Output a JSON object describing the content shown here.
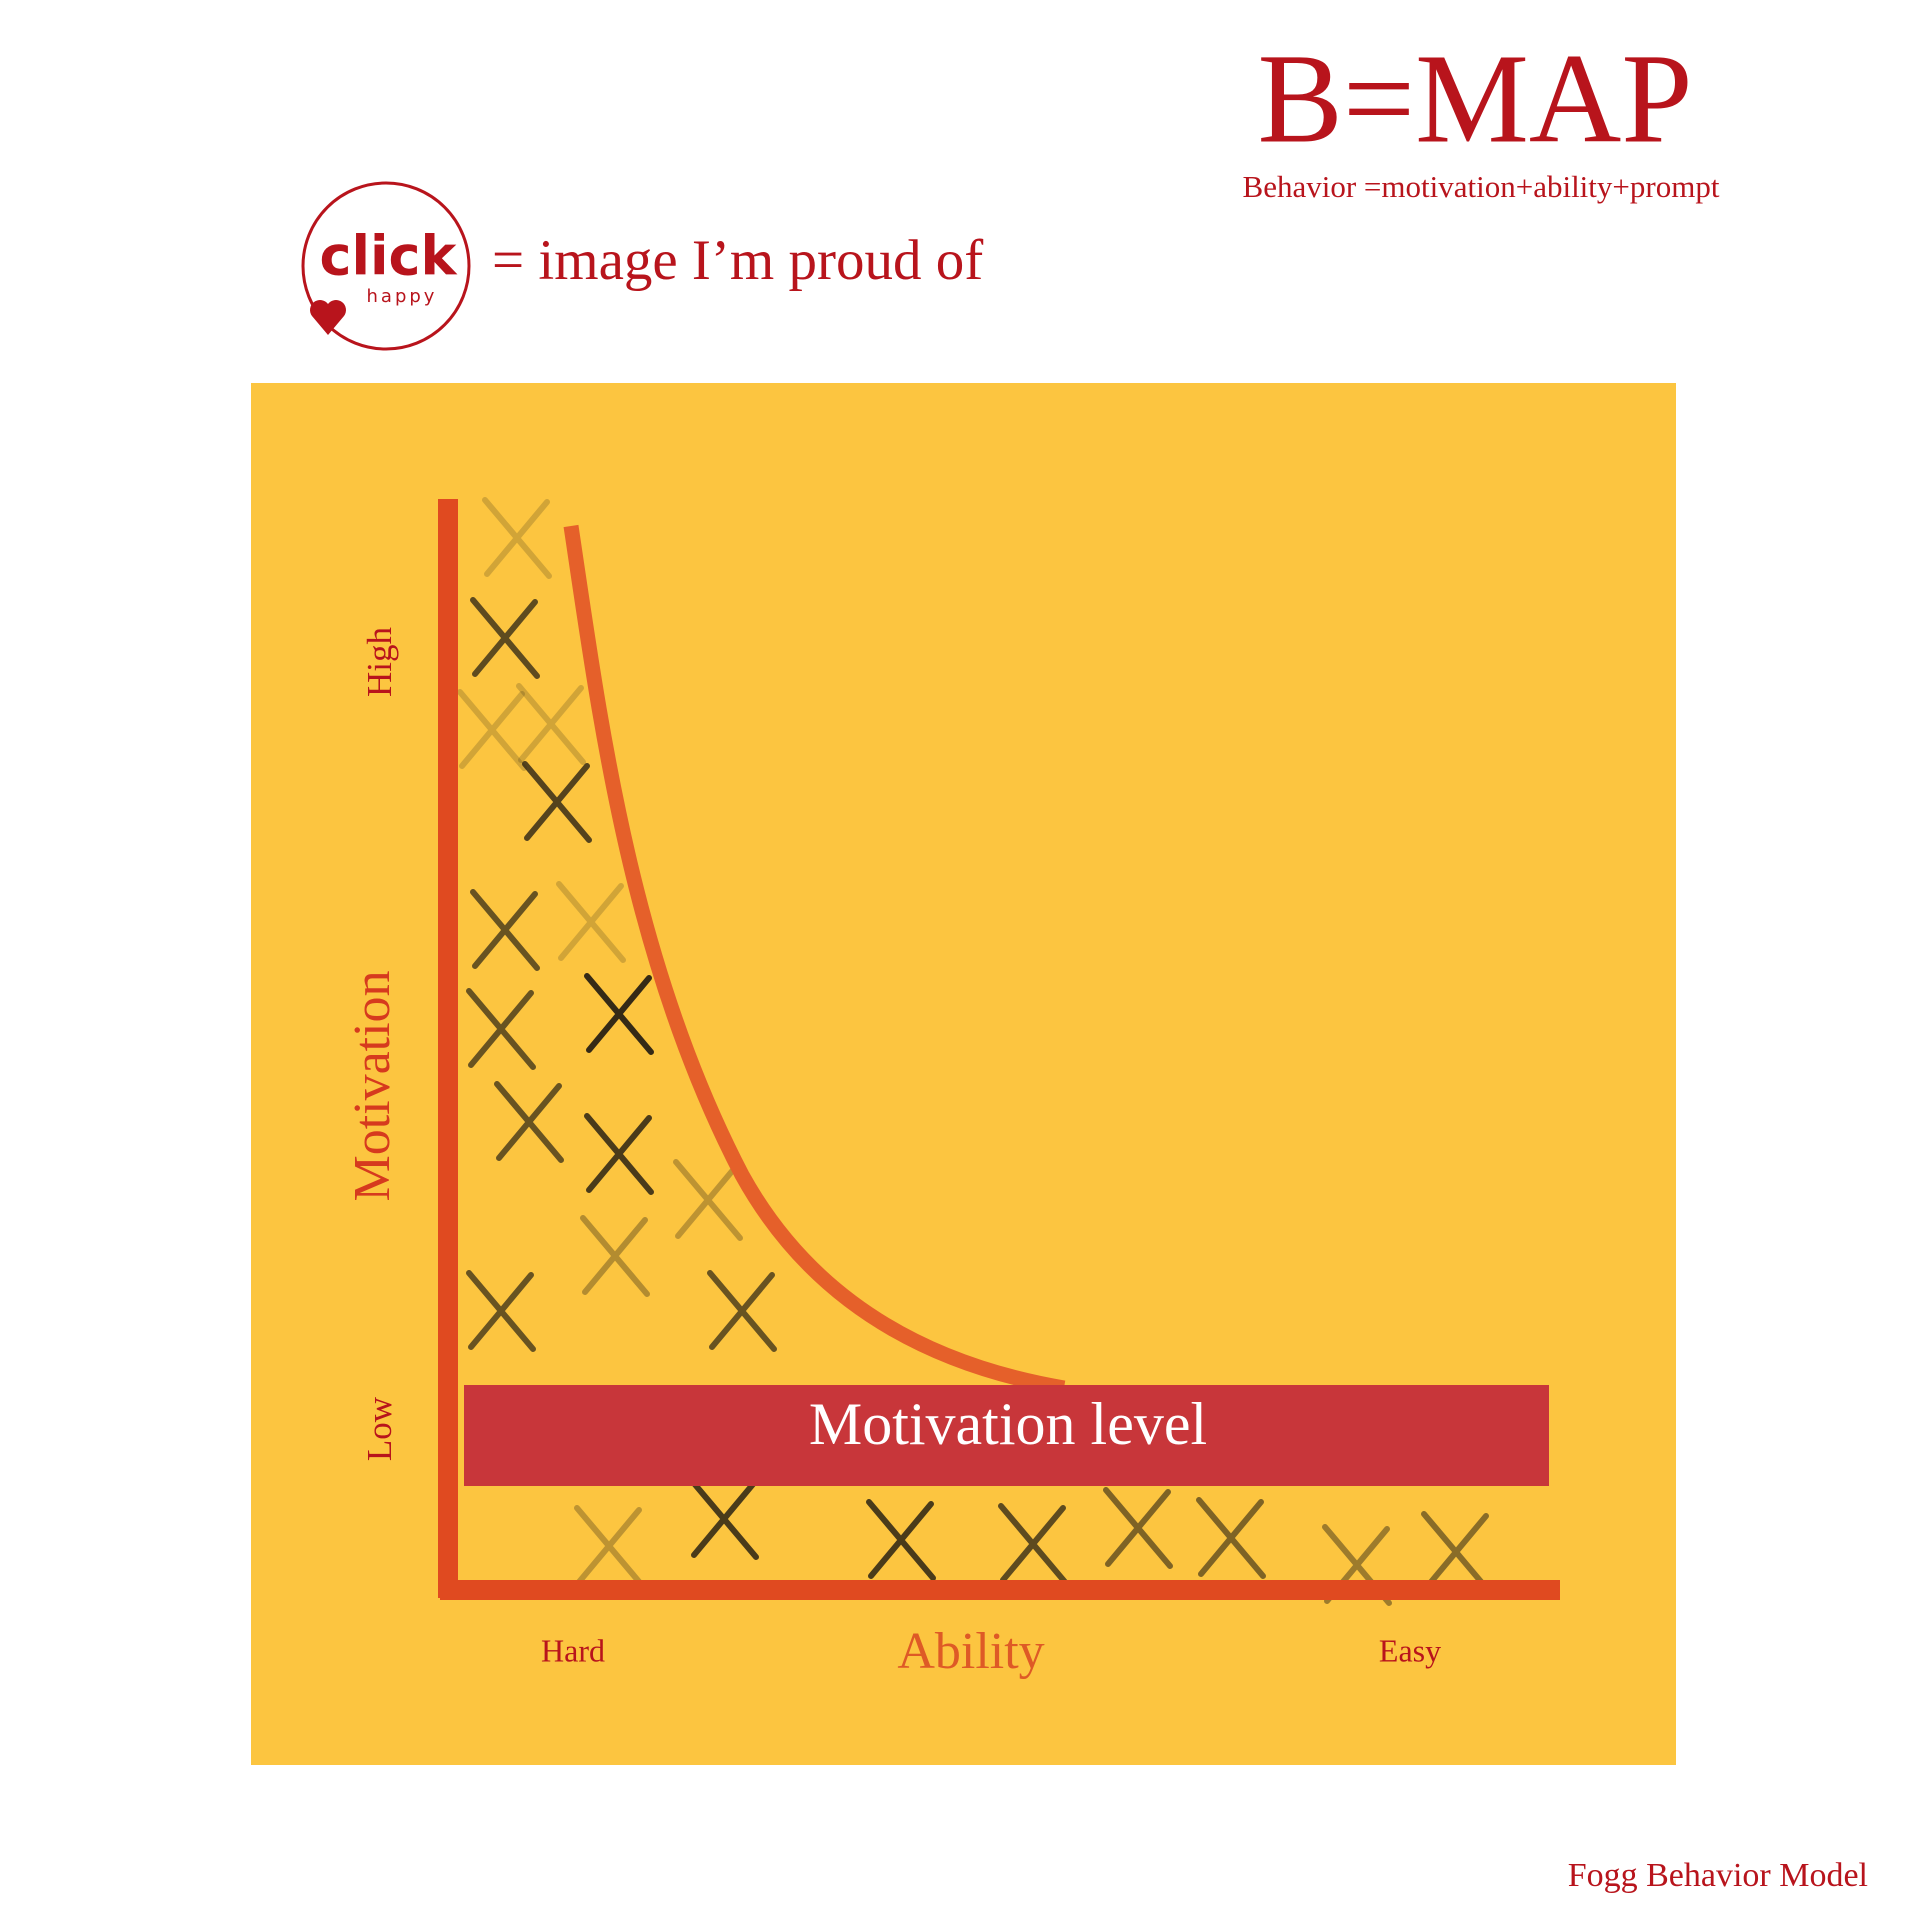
{
  "header": {
    "title": "B=MAP",
    "subtitle": "Behavior =motivation+ability+prompt"
  },
  "badge": {
    "logo_main": "click",
    "logo_sub": "happy",
    "caption": "= image I’m proud of"
  },
  "diagram": {
    "y_axis_label": "Motivation",
    "y_high": "High",
    "y_low": "Low",
    "x_axis_label": "Ability",
    "x_low": "Hard",
    "x_high": "Easy",
    "band_label": "Motivation level"
  },
  "footer": {
    "credit": "Fogg Behavior Model"
  }
}
